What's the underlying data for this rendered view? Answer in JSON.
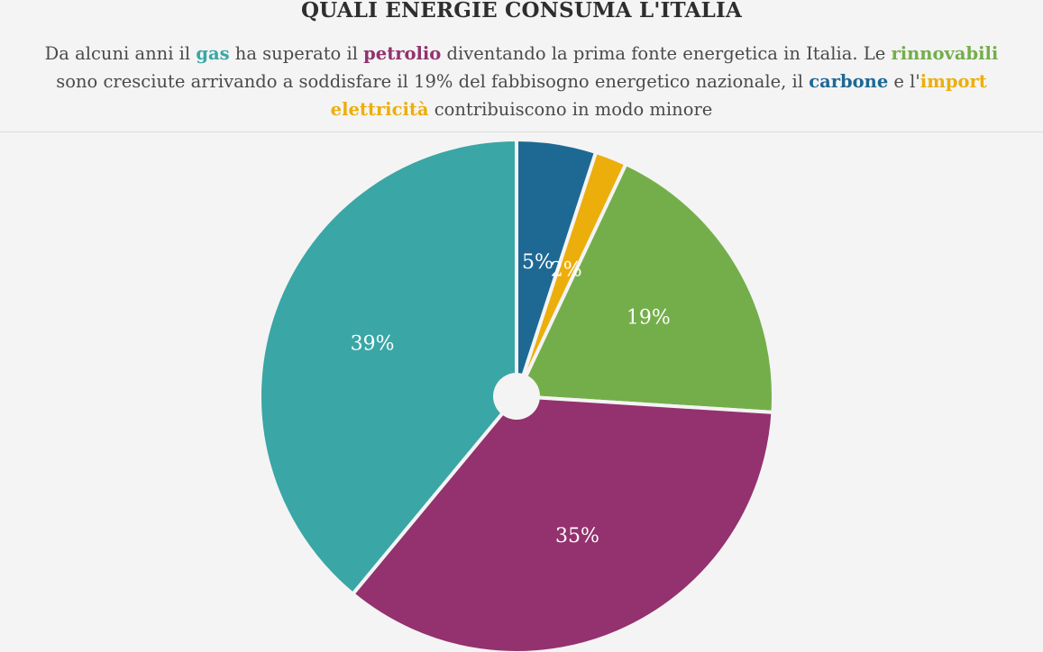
{
  "header": {
    "title": "QUALI ENERGIE CONSUMA L'ITALIA",
    "subtitle": {
      "part1": "Da alcuni anni il ",
      "gas": "gas",
      "part2": " ha superato il ",
      "petrolio": "petrolio",
      "part3": " diventando la prima fonte energetica in Italia. Le ",
      "rinnovabili": "rinnovabili",
      "part4": " sono cresciute arrivando a soddisfare il 19% del fabbisogno energetico nazionale, il ",
      "carbone": "carbone",
      "part5": " e l'",
      "import": "import elettricità",
      "part6": " contribuiscono in modo minore"
    }
  },
  "colors": {
    "gas": "#3aa6a6",
    "petrolio": "#93326e",
    "rinnovabili": "#74ae4a",
    "carbone": "#1e6994",
    "import": "#ecae0b"
  },
  "chart_data": {
    "type": "pie",
    "title": "QUALI ENERGIE CONSUMA L'ITALIA",
    "slices": [
      {
        "key": "carbone",
        "value": 5,
        "label": "5%",
        "color": "#1e6994"
      },
      {
        "key": "import",
        "value": 2,
        "label": "2%",
        "color": "#ecae0b"
      },
      {
        "key": "rinnovabili",
        "value": 19,
        "label": "19%",
        "color": "#74ae4a"
      },
      {
        "key": "petrolio",
        "value": 35,
        "label": "35%",
        "color": "#93326e"
      },
      {
        "key": "gas",
        "value": 39,
        "label": "39%",
        "color": "#3aa6a6"
      }
    ]
  }
}
